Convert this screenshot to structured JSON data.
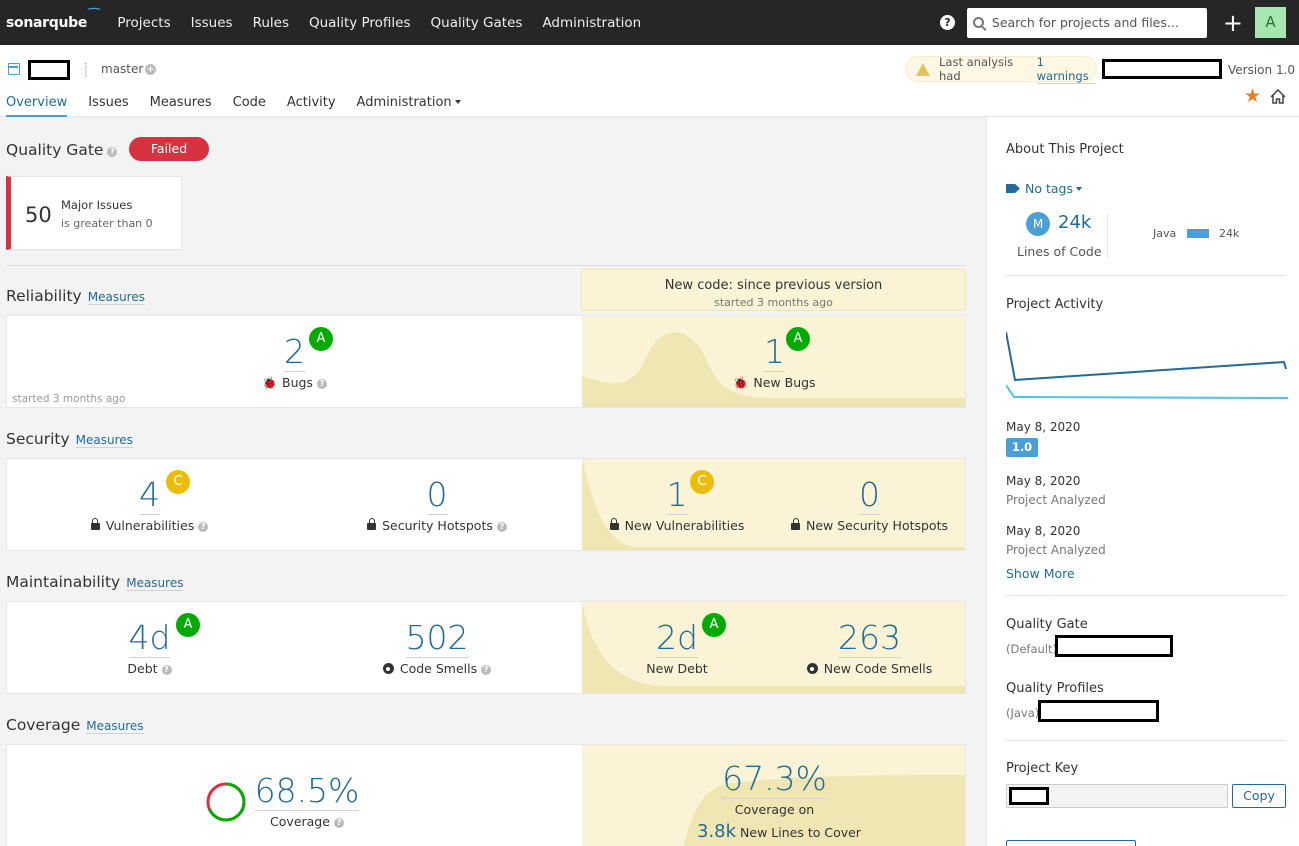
{
  "topnav": {
    "logo": "sonarqube",
    "links": [
      "Projects",
      "Issues",
      "Rules",
      "Quality Profiles",
      "Quality Gates",
      "Administration"
    ],
    "help": "?",
    "search_placeholder": "Search for projects and files...",
    "plus": "+",
    "avatar": "A"
  },
  "project": {
    "branch": "master",
    "warning_text": "Last analysis had",
    "warning_link": "1 warnings",
    "version": "Version 1.0",
    "tabs": [
      "Overview",
      "Issues",
      "Measures",
      "Code",
      "Activity",
      "Administration"
    ]
  },
  "quality_gate": {
    "title": "Quality Gate",
    "status": "Failed",
    "status_color": "#d4333f",
    "condition_value": "50",
    "condition_label": "Major Issues",
    "condition_desc": "is greater than 0"
  },
  "new_code": {
    "title": "New code: since previous version",
    "started": "started 3 months ago"
  },
  "measures_link": "Measures",
  "reliability": {
    "title": "Reliability",
    "bugs": "2",
    "bugs_rating": "A",
    "bugs_label": "Bugs",
    "started": "started 3 months ago",
    "new_bugs": "1",
    "new_bugs_rating": "A",
    "new_bugs_label": "New Bugs"
  },
  "security": {
    "title": "Security",
    "vulns": "4",
    "vulns_rating": "C",
    "vulns_label": "Vulnerabilities",
    "hotspots": "0",
    "hotspots_label": "Security Hotspots",
    "new_vulns": "1",
    "new_vulns_rating": "C",
    "new_vulns_label": "New Vulnerabilities",
    "new_hotspots": "0",
    "new_hotspots_label": "New Security Hotspots"
  },
  "maintainability": {
    "title": "Maintainability",
    "debt": "4d",
    "debt_rating": "A",
    "debt_label": "Debt",
    "smells": "502",
    "smells_label": "Code Smells",
    "new_debt": "2d",
    "new_debt_rating": "A",
    "new_debt_label": "New Debt",
    "new_smells": "263",
    "new_smells_label": "New Code Smells"
  },
  "coverage": {
    "title": "Coverage",
    "value": "68.5%",
    "value_fraction": 0.685,
    "label": "Coverage",
    "new_value": "67.3%",
    "new_label": "Coverage on",
    "new_lines": "3.8k",
    "new_lines_label": "New Lines to Cover"
  },
  "sidebar": {
    "about_title": "About This Project",
    "tags": "No tags",
    "loc_badge": "M",
    "loc_value": "24k",
    "loc_label": "Lines of Code",
    "lang_name": "Java",
    "lang_value": "24k",
    "activity_title": "Project Activity",
    "activities": [
      {
        "date": "May 8, 2020",
        "sub": "1.0"
      },
      {
        "date": "May 8, 2020",
        "sub": "Project Analyzed"
      },
      {
        "date": "May 8, 2020",
        "sub": "Project Analyzed"
      }
    ],
    "show_more": "Show More",
    "qg_title": "Quality Gate",
    "qg_default": "(Default)",
    "qp_title": "Quality Profiles",
    "qp_lang": "(Java)",
    "key_title": "Project Key",
    "copy": "Copy"
  }
}
